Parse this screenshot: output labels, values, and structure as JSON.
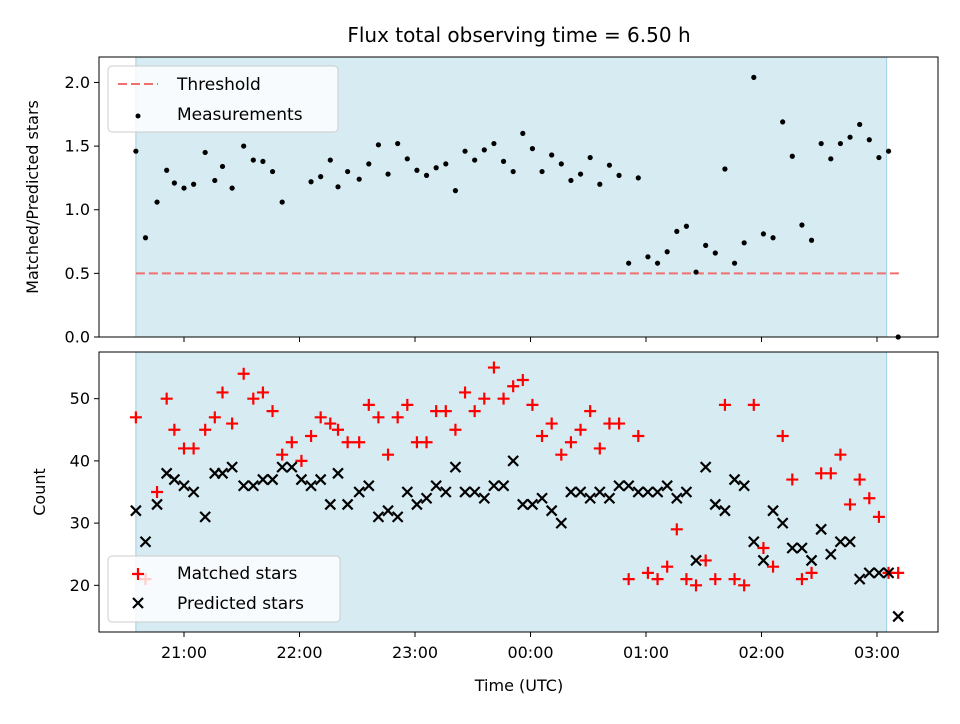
{
  "chart_data": [
    {
      "type": "scatter",
      "title": "Flux total observing time = 6.50 h",
      "ylabel": "Matched/Predicted stars",
      "xlabel": "",
      "ylim": [
        0.0,
        2.2
      ],
      "yticks": [
        "0.0",
        "0.5",
        "1.0",
        "1.5",
        "2.0"
      ],
      "ytick_values": [
        0.0,
        0.5,
        1.0,
        1.5,
        2.0
      ],
      "grid": false,
      "legend_placement": "top-left",
      "observing_window": [
        "20:35",
        "03:05"
      ],
      "threshold": {
        "name": "Threshold",
        "value": 0.5,
        "color": "#f07070",
        "style": "dashed"
      },
      "series": [
        {
          "name": "Measurements",
          "color": "#000000",
          "marker": "dot",
          "x": [
            "20:35",
            "20:40",
            "20:46",
            "20:51",
            "20:55",
            "21:00",
            "21:05",
            "21:11",
            "21:16",
            "21:20",
            "21:25",
            "21:31",
            "21:36",
            "21:41",
            "21:46",
            "21:51",
            "22:06",
            "22:11",
            "22:16",
            "22:20",
            "22:25",
            "22:31",
            "22:36",
            "22:41",
            "22:46",
            "22:51",
            "22:56",
            "23:01",
            "23:06",
            "23:11",
            "23:16",
            "23:21",
            "23:26",
            "23:31",
            "23:36",
            "23:41",
            "23:46",
            "23:51",
            "23:56",
            "00:01",
            "00:06",
            "00:11",
            "00:16",
            "00:21",
            "00:26",
            "00:31",
            "00:36",
            "00:41",
            "00:46",
            "00:51",
            "00:56",
            "01:01",
            "01:06",
            "01:11",
            "01:16",
            "01:21",
            "01:26",
            "01:31",
            "01:36",
            "01:41",
            "01:46",
            "01:51",
            "01:56",
            "02:01",
            "02:06",
            "02:11",
            "02:16",
            "02:21",
            "02:26",
            "02:31",
            "02:36",
            "02:41",
            "02:46",
            "02:51",
            "02:56",
            "03:01",
            "03:06",
            "03:11"
          ],
          "y": [
            1.46,
            0.78,
            1.06,
            1.31,
            1.21,
            1.17,
            1.2,
            1.45,
            1.23,
            1.34,
            1.17,
            1.5,
            1.39,
            1.38,
            1.3,
            1.06,
            1.22,
            1.26,
            1.39,
            1.18,
            1.3,
            1.24,
            1.36,
            1.51,
            1.28,
            1.52,
            1.4,
            1.31,
            1.27,
            1.33,
            1.36,
            1.15,
            1.46,
            1.39,
            1.47,
            1.52,
            1.38,
            1.3,
            1.6,
            1.48,
            1.3,
            1.43,
            1.36,
            1.23,
            1.28,
            1.41,
            1.2,
            1.35,
            1.27,
            0.58,
            1.25,
            0.63,
            0.58,
            0.67,
            0.83,
            0.87,
            0.51,
            0.72,
            0.66,
            1.32,
            0.58,
            0.74,
            2.04,
            0.81,
            0.78,
            1.69,
            1.42,
            0.88,
            0.76,
            1.52,
            1.4,
            1.52,
            1.57,
            1.67,
            1.55,
            1.41,
            1.46,
            0.0
          ]
        }
      ]
    },
    {
      "type": "scatter",
      "title": "",
      "ylabel": "Count",
      "xlabel": "Time (UTC)",
      "ylim": [
        12.5,
        57.5
      ],
      "yticks": [
        "20",
        "30",
        "40",
        "50"
      ],
      "ytick_values": [
        20,
        30,
        40,
        50
      ],
      "xticks": [
        "21:00",
        "22:00",
        "23:00",
        "00:00",
        "01:00",
        "02:00",
        "03:00"
      ],
      "grid": false,
      "legend_placement": "bottom-left",
      "observing_window": [
        "20:35",
        "03:05"
      ],
      "series": [
        {
          "name": "Matched stars",
          "color": "#ff0000",
          "marker": "plus",
          "x": [
            "20:35",
            "20:40",
            "20:46",
            "20:51",
            "20:55",
            "21:00",
            "21:05",
            "21:11",
            "21:16",
            "21:20",
            "21:25",
            "21:31",
            "21:36",
            "21:41",
            "21:46",
            "21:51",
            "21:56",
            "22:01",
            "22:06",
            "22:11",
            "22:16",
            "22:20",
            "22:25",
            "22:31",
            "22:36",
            "22:41",
            "22:46",
            "22:51",
            "22:56",
            "23:01",
            "23:06",
            "23:11",
            "23:16",
            "23:21",
            "23:26",
            "23:31",
            "23:36",
            "23:41",
            "23:46",
            "23:51",
            "23:56",
            "00:01",
            "00:06",
            "00:11",
            "00:16",
            "00:21",
            "00:26",
            "00:31",
            "00:36",
            "00:41",
            "00:46",
            "00:51",
            "00:56",
            "01:01",
            "01:06",
            "01:11",
            "01:16",
            "01:21",
            "01:26",
            "01:31",
            "01:36",
            "01:41",
            "01:46",
            "01:51",
            "01:56",
            "02:01",
            "02:06",
            "02:11",
            "02:16",
            "02:21",
            "02:26",
            "02:31",
            "02:36",
            "02:41",
            "02:46",
            "02:51",
            "02:56",
            "03:01",
            "03:06",
            "03:11"
          ],
          "y": [
            47,
            21,
            35,
            50,
            45,
            42,
            42,
            45,
            47,
            51,
            46,
            54,
            50,
            51,
            48,
            41,
            43,
            40,
            44,
            47,
            46,
            45,
            43,
            43,
            49,
            47,
            41,
            47,
            49,
            43,
            43,
            48,
            48,
            45,
            51,
            48,
            50,
            55,
            50,
            52,
            53,
            49,
            44,
            46,
            41,
            43,
            45,
            48,
            42,
            46,
            46,
            21,
            44,
            22,
            21,
            23,
            29,
            21,
            20,
            24,
            21,
            49,
            21,
            20,
            49,
            26,
            23,
            44,
            37,
            21,
            22,
            38,
            38,
            41,
            33,
            37,
            34,
            31,
            22,
            22
          ]
        },
        {
          "name": "Predicted stars",
          "color": "#000000",
          "marker": "x",
          "x": [
            "20:35",
            "20:40",
            "20:46",
            "20:51",
            "20:55",
            "21:00",
            "21:05",
            "21:11",
            "21:16",
            "21:20",
            "21:25",
            "21:31",
            "21:36",
            "21:41",
            "21:46",
            "21:51",
            "21:56",
            "22:01",
            "22:06",
            "22:11",
            "22:16",
            "22:20",
            "22:25",
            "22:31",
            "22:36",
            "22:41",
            "22:46",
            "22:51",
            "22:56",
            "23:01",
            "23:06",
            "23:11",
            "23:16",
            "23:21",
            "23:26",
            "23:31",
            "23:36",
            "23:41",
            "23:46",
            "23:51",
            "23:56",
            "00:01",
            "00:06",
            "00:11",
            "00:16",
            "00:21",
            "00:26",
            "00:31",
            "00:36",
            "00:41",
            "00:46",
            "00:51",
            "00:56",
            "01:01",
            "01:06",
            "01:11",
            "01:16",
            "01:21",
            "01:26",
            "01:31",
            "01:36",
            "01:41",
            "01:46",
            "01:51",
            "01:56",
            "02:01",
            "02:06",
            "02:11",
            "02:16",
            "02:21",
            "02:26",
            "02:31",
            "02:36",
            "02:41",
            "02:46",
            "02:51",
            "02:56",
            "03:01",
            "03:06",
            "03:11"
          ],
          "y": [
            32,
            27,
            33,
            38,
            37,
            36,
            35,
            31,
            38,
            38,
            39,
            36,
            36,
            37,
            37,
            39,
            39,
            37,
            36,
            37,
            33,
            38,
            33,
            35,
            36,
            31,
            32,
            31,
            35,
            33,
            34,
            36,
            35,
            39,
            35,
            35,
            34,
            36,
            36,
            40,
            33,
            33,
            34,
            32,
            30,
            35,
            35,
            34,
            35,
            34,
            36,
            36,
            35,
            35,
            35,
            36,
            34,
            35,
            24,
            39,
            33,
            32,
            37,
            36,
            27,
            24,
            32,
            30,
            26,
            26,
            24,
            29,
            25,
            27,
            27,
            21,
            22,
            22,
            22,
            15
          ]
        }
      ]
    }
  ],
  "legend": {
    "top": [
      "Threshold",
      "Measurements"
    ],
    "bottom": [
      "Matched stars",
      "Predicted stars"
    ]
  }
}
